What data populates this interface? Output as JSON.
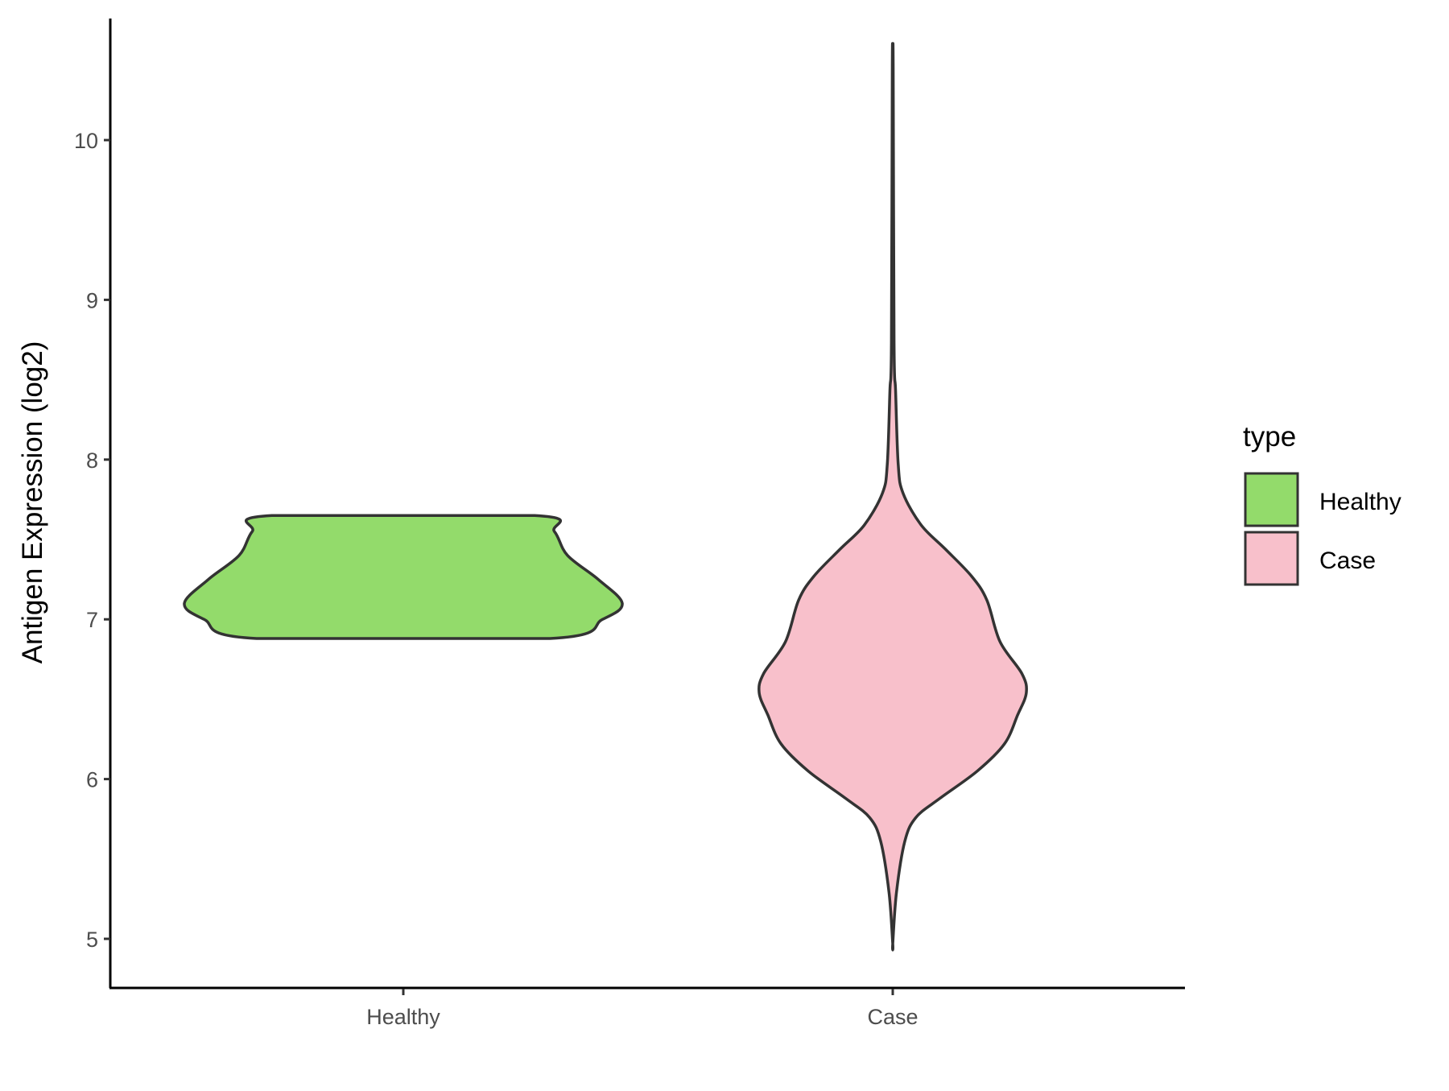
{
  "chart_data": {
    "type": "violin",
    "title": "",
    "xlabel": "",
    "ylabel": "Antigen Expression (log2)",
    "ylim": [
      4.7,
      10.75
    ],
    "yticks": [
      5,
      6,
      7,
      8,
      9,
      10
    ],
    "grid": false,
    "categories": [
      "Healthy",
      "Case"
    ],
    "legend": {
      "title": "type",
      "position": "right",
      "entries": [
        "Healthy",
        "Case"
      ]
    },
    "series": [
      {
        "name": "Healthy",
        "color": "#93DB6B",
        "profile": [
          [
            6.88,
            0.67
          ],
          [
            7.0,
            0.91
          ],
          [
            7.1,
            1.0
          ],
          [
            7.25,
            0.89
          ],
          [
            7.4,
            0.75
          ],
          [
            7.55,
            0.69
          ],
          [
            7.65,
            0.6
          ]
        ],
        "flat_ends": true
      },
      {
        "name": "Case",
        "color": "#F8C0CB",
        "profile": [
          [
            4.97,
            0.0
          ],
          [
            5.29,
            0.017
          ],
          [
            5.61,
            0.055
          ],
          [
            5.76,
            0.106
          ],
          [
            5.88,
            0.216
          ],
          [
            6.05,
            0.386
          ],
          [
            6.22,
            0.51
          ],
          [
            6.4,
            0.57
          ],
          [
            6.54,
            0.61
          ],
          [
            6.66,
            0.59
          ],
          [
            6.86,
            0.49
          ],
          [
            7.12,
            0.43
          ],
          [
            7.27,
            0.36
          ],
          [
            7.44,
            0.24
          ],
          [
            7.59,
            0.13
          ],
          [
            7.79,
            0.047
          ],
          [
            7.97,
            0.025
          ],
          [
            8.43,
            0.013
          ],
          [
            8.73,
            0.006
          ],
          [
            10.47,
            0.002
          ],
          [
            10.49,
            0.0
          ]
        ],
        "flat_ends": false
      }
    ],
    "outline_color": "#333333"
  }
}
